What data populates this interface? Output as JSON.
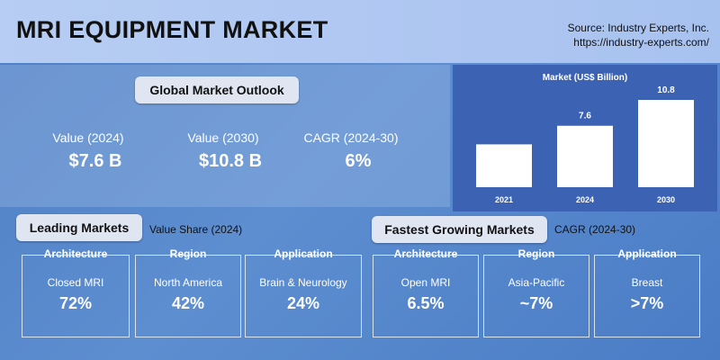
{
  "header": {
    "title": "MRI EQUIPMENT MARKET",
    "source": [
      "Source: Industry Experts, Inc.",
      "https://industry-experts.com/"
    ]
  },
  "outlook": {
    "title": "Global Market Outlook",
    "stats": [
      {
        "label": "Value (2024)",
        "value": "$7.6 B"
      },
      {
        "label": "Value (2030)",
        "value": "$10.8 B"
      },
      {
        "label": "CAGR (2024-30)",
        "value": "6%"
      }
    ]
  },
  "chart_data": {
    "type": "bar",
    "title": "Market (US$ Billion)",
    "categories": [
      "2021",
      "2024",
      "2030"
    ],
    "values": [
      5.3,
      7.6,
      10.8
    ],
    "value_labels": [
      null,
      "7.6",
      "10.8"
    ],
    "color": "#ffffff"
  },
  "leading": {
    "title": "Leading Markets",
    "subtitle": "Value Share (2024)",
    "cards": [
      {
        "category": "Architecture",
        "label": "Closed MRI",
        "value": "72%"
      },
      {
        "category": "Region",
        "label": "North America",
        "value": "42%"
      },
      {
        "category": "Application",
        "label": "Brain & Neurology",
        "value": "24%"
      }
    ]
  },
  "fastest": {
    "title": "Fastest Growing Markets",
    "subtitle": "CAGR (2024-30)",
    "cards": [
      {
        "category": "Architecture",
        "label": "Open MRI",
        "value": "6.5%"
      },
      {
        "category": "Region",
        "label": "Asia-Pacific",
        "value": "~7%"
      },
      {
        "category": "Application",
        "label": "Breast",
        "value": ">7%"
      }
    ]
  }
}
